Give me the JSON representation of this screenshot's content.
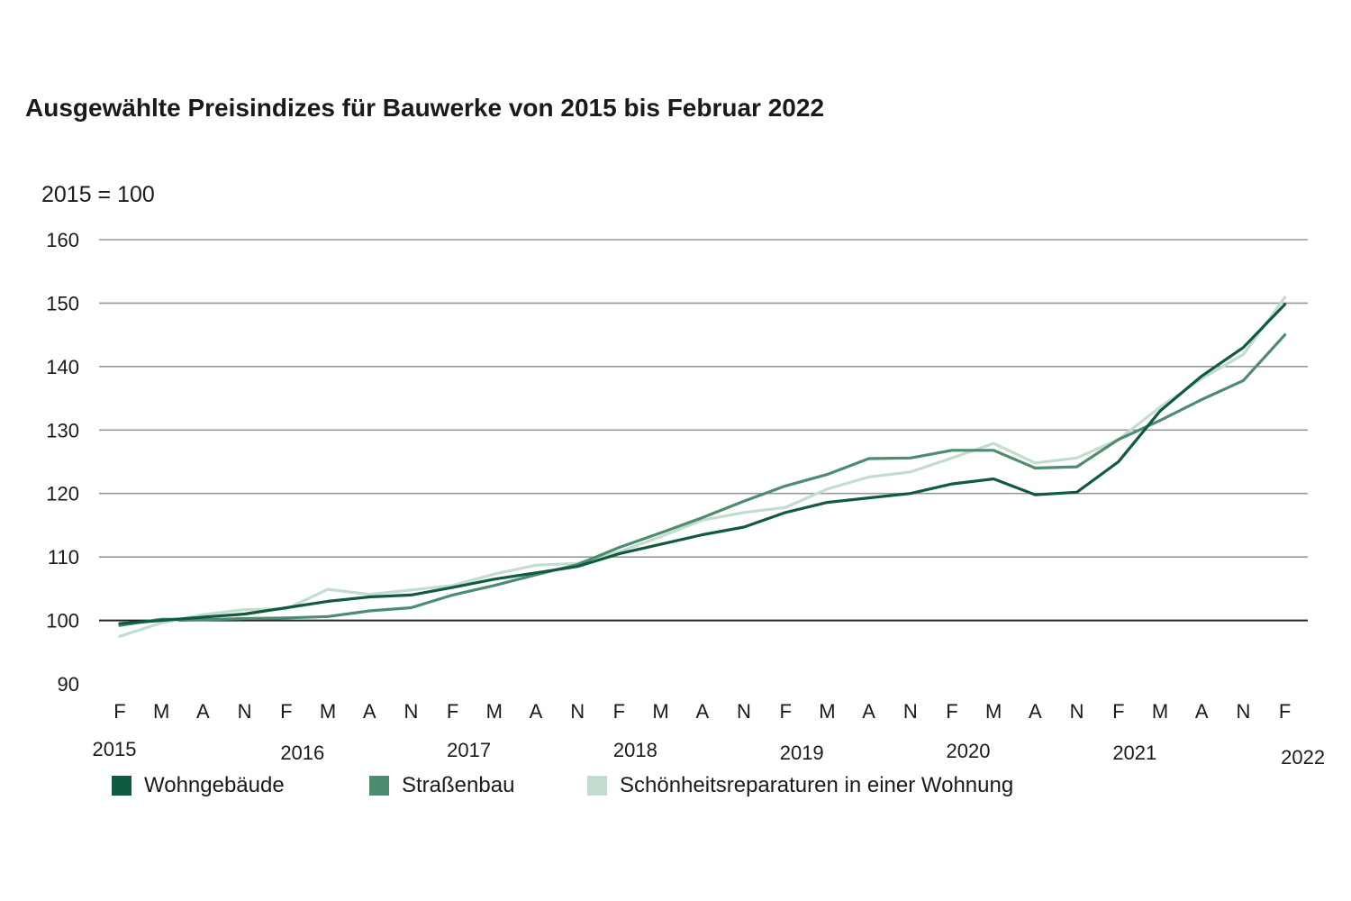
{
  "title": "Ausgewählte Preisindizes für Bauwerke von 2015 bis Februar 2022",
  "unit_label": "2015 = 100",
  "colors": {
    "wohngebaeude": "#0f5a40",
    "strassenbau": "#4d8c6e",
    "schoenheit": "#c2ddcd",
    "grid": "#999999",
    "baseline": "#222222"
  },
  "chart_data": {
    "type": "line",
    "title": "Ausgewählte Preisindizes für Bauwerke von 2015 bis Februar 2022",
    "ylabel": "2015 = 100",
    "ylim": [
      90,
      160
    ],
    "yticks": [
      90,
      100,
      110,
      120,
      130,
      140,
      150,
      160
    ],
    "grid": true,
    "legend_position": "bottom",
    "x": [
      "F",
      "M",
      "A",
      "N",
      "F",
      "M",
      "A",
      "N",
      "F",
      "M",
      "A",
      "N",
      "F",
      "M",
      "A",
      "N",
      "F",
      "M",
      "A",
      "N",
      "F",
      "M",
      "A",
      "N",
      "F",
      "M",
      "A",
      "N",
      "F"
    ],
    "years": [
      {
        "label": "2015",
        "index": 0
      },
      {
        "label": "2016",
        "index": 4
      },
      {
        "label": "2017",
        "index": 8
      },
      {
        "label": "2018",
        "index": 12
      },
      {
        "label": "2019",
        "index": 16
      },
      {
        "label": "2020",
        "index": 20
      },
      {
        "label": "2021",
        "index": 24
      },
      {
        "label": "2022",
        "index": 28
      }
    ],
    "series": [
      {
        "name": "Wohngebäude",
        "color": "#0f5a40",
        "values": [
          99.5,
          100.0,
          100.5,
          101.0,
          102.0,
          103.0,
          103.7,
          104.0,
          105.2,
          106.5,
          107.5,
          108.5,
          110.5,
          112.0,
          113.5,
          114.7,
          117.0,
          118.6,
          119.3,
          120.0,
          121.5,
          122.3,
          119.8,
          120.2,
          125.0,
          133.0,
          138.5,
          143.0,
          149.8
        ]
      },
      {
        "name": "Straßenbau",
        "color": "#4d8c6e",
        "values": [
          99.2,
          100.2,
          100.1,
          100.3,
          100.4,
          100.6,
          101.5,
          102.0,
          104.0,
          105.5,
          107.2,
          108.8,
          111.5,
          113.8,
          116.2,
          118.8,
          121.2,
          123.0,
          125.5,
          125.6,
          126.8,
          126.8,
          124.0,
          124.2,
          128.5,
          131.5,
          134.8,
          137.8,
          145.0
        ]
      },
      {
        "name": "Schönheitsreparaturen in einer Wohnung",
        "color": "#c2ddcd",
        "values": [
          97.5,
          99.6,
          100.9,
          101.7,
          101.8,
          104.9,
          104.1,
          104.8,
          105.5,
          107.3,
          108.7,
          109.0,
          110.8,
          113.2,
          115.8,
          117.0,
          117.8,
          120.7,
          122.6,
          123.4,
          125.6,
          127.9,
          124.8,
          125.6,
          128.5,
          133.6,
          138.1,
          141.9,
          150.9
        ]
      }
    ]
  }
}
